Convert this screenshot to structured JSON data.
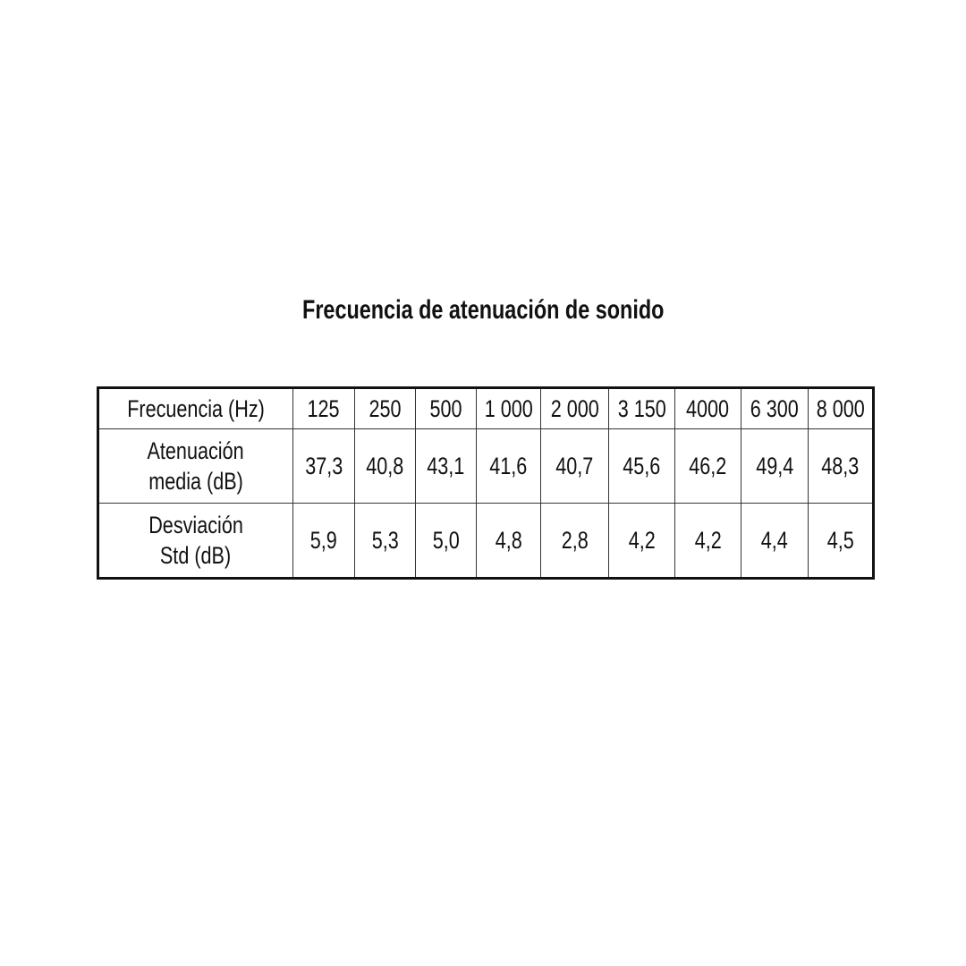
{
  "title": "Frecuencia de atenuación de sonido",
  "table": {
    "rows": [
      {
        "label": [
          "Frecuencia (Hz)"
        ],
        "values": [
          "125",
          "250",
          "500",
          "1 000",
          "2 000",
          "3 150",
          "4000",
          "6 300",
          "8 000"
        ]
      },
      {
        "label": [
          "Atenuación",
          "media (dB)"
        ],
        "values": [
          "37,3",
          "40,8",
          "43,1",
          "41,6",
          "40,7",
          "45,6",
          "46,2",
          "49,4",
          "48,3"
        ]
      },
      {
        "label": [
          "Desviación",
          "Std (dB)"
        ],
        "values": [
          "5,9",
          "5,3",
          "5,0",
          "4,8",
          "2,8",
          "4,2",
          "4,2",
          "4,4",
          "4,5"
        ]
      }
    ]
  }
}
